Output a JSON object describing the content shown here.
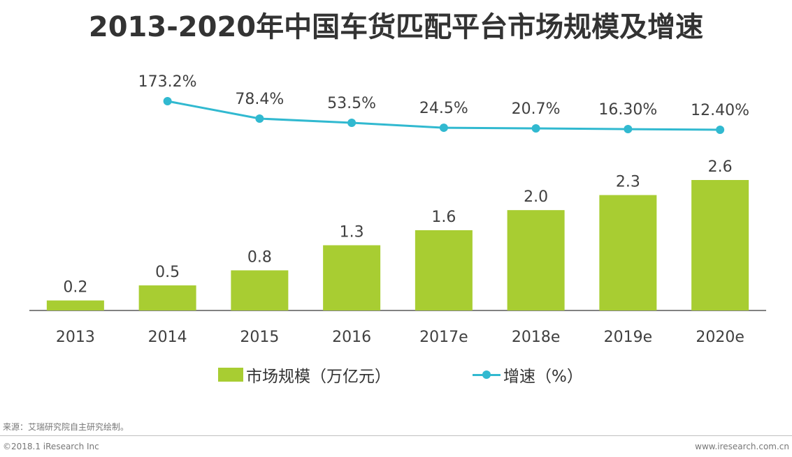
{
  "title": "2013-2020年中国车货匹配平台市场规模及增速",
  "colors": {
    "bar": "#a8cd32",
    "line": "#31b9d0",
    "axis": "#595959"
  },
  "chart_data": {
    "type": "bar+line",
    "title": "2013-2020年中国车货匹配平台市场规模及增速",
    "categories": [
      "2013",
      "2014",
      "2015",
      "2016",
      "2017e",
      "2018e",
      "2019e",
      "2020e"
    ],
    "series": [
      {
        "name": "市场规模（万亿元）",
        "type": "bar",
        "values": [
          0.2,
          0.5,
          0.8,
          1.3,
          1.6,
          2.0,
          2.3,
          2.6
        ],
        "labels": [
          "0.2",
          "0.5",
          "0.8",
          "1.3",
          "1.6",
          "2.0",
          "2.3",
          "2.6"
        ]
      },
      {
        "name": "增速（%）",
        "type": "line",
        "values": [
          null,
          173.2,
          78.4,
          53.5,
          24.5,
          20.7,
          16.3,
          12.4
        ],
        "labels": [
          "",
          "173.2%",
          "78.4%",
          "53.5%",
          "24.5%",
          "20.7%",
          "16.30%",
          "12.40%"
        ]
      }
    ],
    "ylim_bar": [
      0,
      3.0
    ],
    "grid": false,
    "legend": "bottom"
  },
  "legend": {
    "bar_label": "市场规模（万亿元）",
    "line_label": "增速（%）"
  },
  "footer": {
    "source": "来源：艾瑞研究院自主研究绘制。",
    "copyright": "©2018.1 iResearch Inc",
    "site": "www.iresearch.com.cn"
  }
}
